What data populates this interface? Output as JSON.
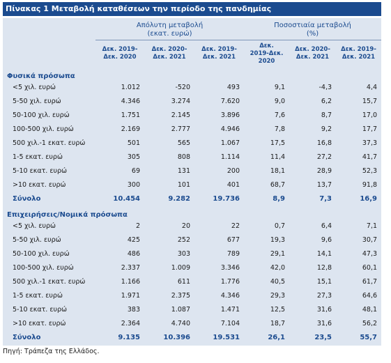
{
  "title": "Πίνακας 1 Μεταβολή καταθέσεων την περίοδο της πανδημίας",
  "group_headers": {
    "absolute": "Απόλυτη μεταβολή\n(εκατ. ευρώ)",
    "percent": "Ποσοστιαία μεταβολή\n(%)"
  },
  "col_headers": [
    [
      "Δεκ. 2019-",
      "Δεκ. 2020"
    ],
    [
      "Δεκ. 2020-",
      "Δεκ. 2021"
    ],
    [
      "Δεκ. 2019-",
      "Δεκ. 2021"
    ],
    [
      "Δεκ.",
      "2019-Δεκ.",
      "2020"
    ],
    [
      "Δεκ. 2020-",
      "Δεκ. 2021"
    ],
    [
      "Δεκ. 2019-",
      "Δεκ. 2021"
    ]
  ],
  "sections": [
    {
      "title": "Φυσικά πρόσωπα",
      "rows": [
        [
          "<5 χιλ. ευρώ",
          "1.012",
          "-520",
          "493",
          "9,1",
          "-4,3",
          "4,4"
        ],
        [
          "5-50 χιλ. ευρώ",
          "4.346",
          "3.274",
          "7.620",
          "9,0",
          "6,2",
          "15,7"
        ],
        [
          "50-100 χιλ. ευρώ",
          "1.751",
          "2.145",
          "3.896",
          "7,6",
          "8,7",
          "17,0"
        ],
        [
          "100-500 χιλ. ευρώ",
          "2.169",
          "2.777",
          "4.946",
          "7,8",
          "9,2",
          "17,7"
        ],
        [
          "500 χιλ.-1 εκατ. ευρώ",
          "501",
          "565",
          "1.067",
          "17,5",
          "16,8",
          "37,3"
        ],
        [
          "1-5 εκατ. ευρώ",
          "305",
          "808",
          "1.114",
          "11,4",
          "27,2",
          "41,7"
        ],
        [
          "5-10 εκατ. ευρώ",
          "69",
          "131",
          "200",
          "18,1",
          "28,9",
          "52,3"
        ],
        [
          ">10 εκατ. ευρώ",
          "300",
          "101",
          "401",
          "68,7",
          "13,7",
          "91,8"
        ]
      ],
      "total": [
        "Σύνολο",
        "10.454",
        "9.282",
        "19.736",
        "8,9",
        "7,3",
        "16,9"
      ]
    },
    {
      "title": "Επιχειρήσεις/Νομικά πρόσωπα",
      "rows": [
        [
          "<5 χιλ. ευρώ",
          "2",
          "20",
          "22",
          "0,7",
          "6,4",
          "7,1"
        ],
        [
          "5-50 χιλ. ευρώ",
          "425",
          "252",
          "677",
          "19,3",
          "9,6",
          "30,7"
        ],
        [
          "50-100 χιλ. ευρώ",
          "486",
          "303",
          "789",
          "29,1",
          "14,1",
          "47,3"
        ],
        [
          "100-500 χιλ. ευρώ",
          "2.337",
          "1.009",
          "3.346",
          "42,0",
          "12,8",
          "60,1"
        ],
        [
          "500 χιλ.-1 εκατ. ευρώ",
          "1.166",
          "611",
          "1.776",
          "40,5",
          "15,1",
          "61,7"
        ],
        [
          "1-5 εκατ. ευρώ",
          "1.971",
          "2.375",
          "4.346",
          "29,3",
          "27,3",
          "64,6"
        ],
        [
          "5-10 εκατ. ευρώ",
          "383",
          "1.087",
          "1.471",
          "12,5",
          "31,6",
          "48,1"
        ],
        [
          ">10 εκατ. ευρώ",
          "2.364",
          "4.740",
          "7.104",
          "18,7",
          "31,6",
          "56,2"
        ]
      ],
      "total": [
        "Σύνολο",
        "9.135",
        "10.396",
        "19.531",
        "26,1",
        "23,5",
        "55,7"
      ]
    }
  ],
  "source": "Πηγή: Τράπεζα της Ελλάδος."
}
